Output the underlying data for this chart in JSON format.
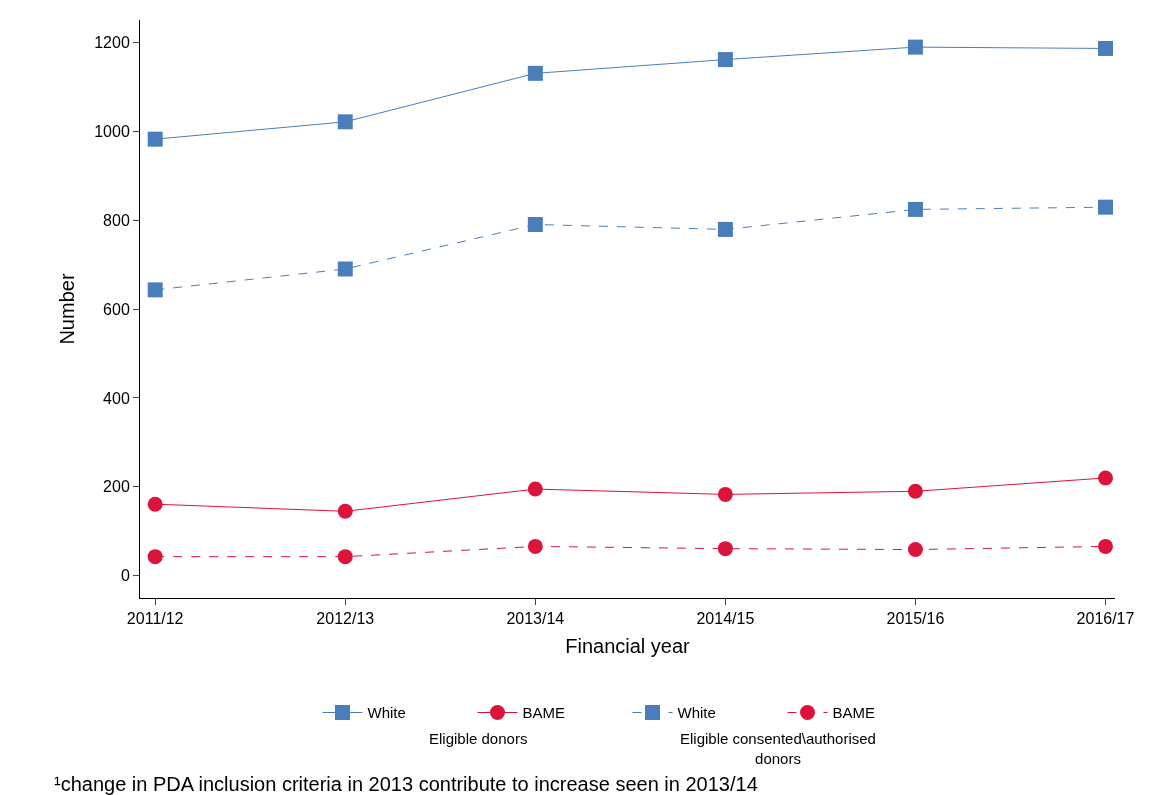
{
  "chart_data": {
    "type": "line",
    "xlabel": "Financial year",
    "ylabel": "Number",
    "categories": [
      "2011/12",
      "2012/13",
      "2013/14",
      "2014/15",
      "2015/16",
      "2016/17"
    ],
    "series": [
      {
        "name": "White",
        "color": "#4a7ebb",
        "marker": "square",
        "line_style": "solid",
        "values": [
          982,
          1021,
          1130,
          1161,
          1189,
          1186
        ]
      },
      {
        "name": "BAME",
        "color": "#dc143c",
        "marker": "circle",
        "line_style": "solid",
        "values": [
          161,
          145,
          195,
          183,
          190,
          220
        ]
      },
      {
        "name": "White",
        "color": "#4a7ebb",
        "marker": "square",
        "line_style": "dashed",
        "values": [
          643,
          690,
          790,
          779,
          824,
          829
        ]
      },
      {
        "name": "BAME",
        "color": "#dc143c",
        "marker": "circle",
        "line_style": "dashed",
        "values": [
          43,
          43,
          66,
          61,
          59,
          66
        ]
      }
    ],
    "ylim": [
      -50,
      1250
    ],
    "yticks": [
      0,
      200,
      400,
      600,
      800,
      1000,
      1200
    ],
    "grid": false,
    "legend": "bottom",
    "annotations": [
      "Eligible donors",
      "Eligible consented\\authorised donors",
      "¹change in PDA inclusion criteria in 2013 contribute to increase seen in 2013/14"
    ]
  }
}
